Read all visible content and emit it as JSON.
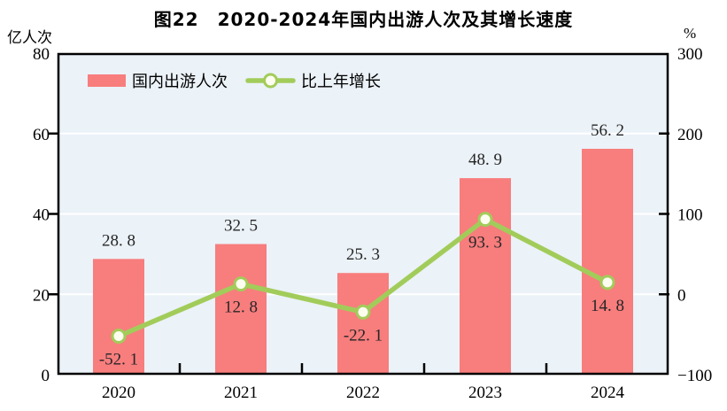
{
  "page": {
    "background": "#ffffff"
  },
  "chart_data": {
    "type": "bar+line",
    "title": "图22　2020-2024年国内出游人次及其增长速度",
    "categories": [
      "2020",
      "2021",
      "2022",
      "2023",
      "2024"
    ],
    "series": [
      {
        "name": "国内出游人次",
        "type": "bar",
        "axis": "left",
        "unit": "亿人次",
        "values": [
          28.8,
          32.5,
          25.3,
          48.9,
          56.2
        ],
        "color": "#f87d7d"
      },
      {
        "name": "比上年增长",
        "type": "line",
        "axis": "right",
        "unit": "%",
        "values": [
          -52.1,
          12.8,
          -22.1,
          93.3,
          14.8
        ],
        "color": "#a2cc5a",
        "marker_fill": "#fdfdf0"
      }
    ],
    "left_axis": {
      "label": "亿人次",
      "min": 0,
      "max": 80,
      "ticks": [
        0,
        20,
        40,
        60,
        80
      ]
    },
    "right_axis": {
      "label": "%",
      "min": -100,
      "max": 300,
      "ticks": [
        -100,
        0,
        100,
        200,
        300
      ]
    },
    "legend": {
      "position": "top-left-inside",
      "entries": [
        "国内出游人次",
        "比上年增长"
      ]
    },
    "plot_bg": "#ebf2f8",
    "grid_color": "#ffffff",
    "frame_color": "#000000",
    "value_label_color": "#262626"
  }
}
